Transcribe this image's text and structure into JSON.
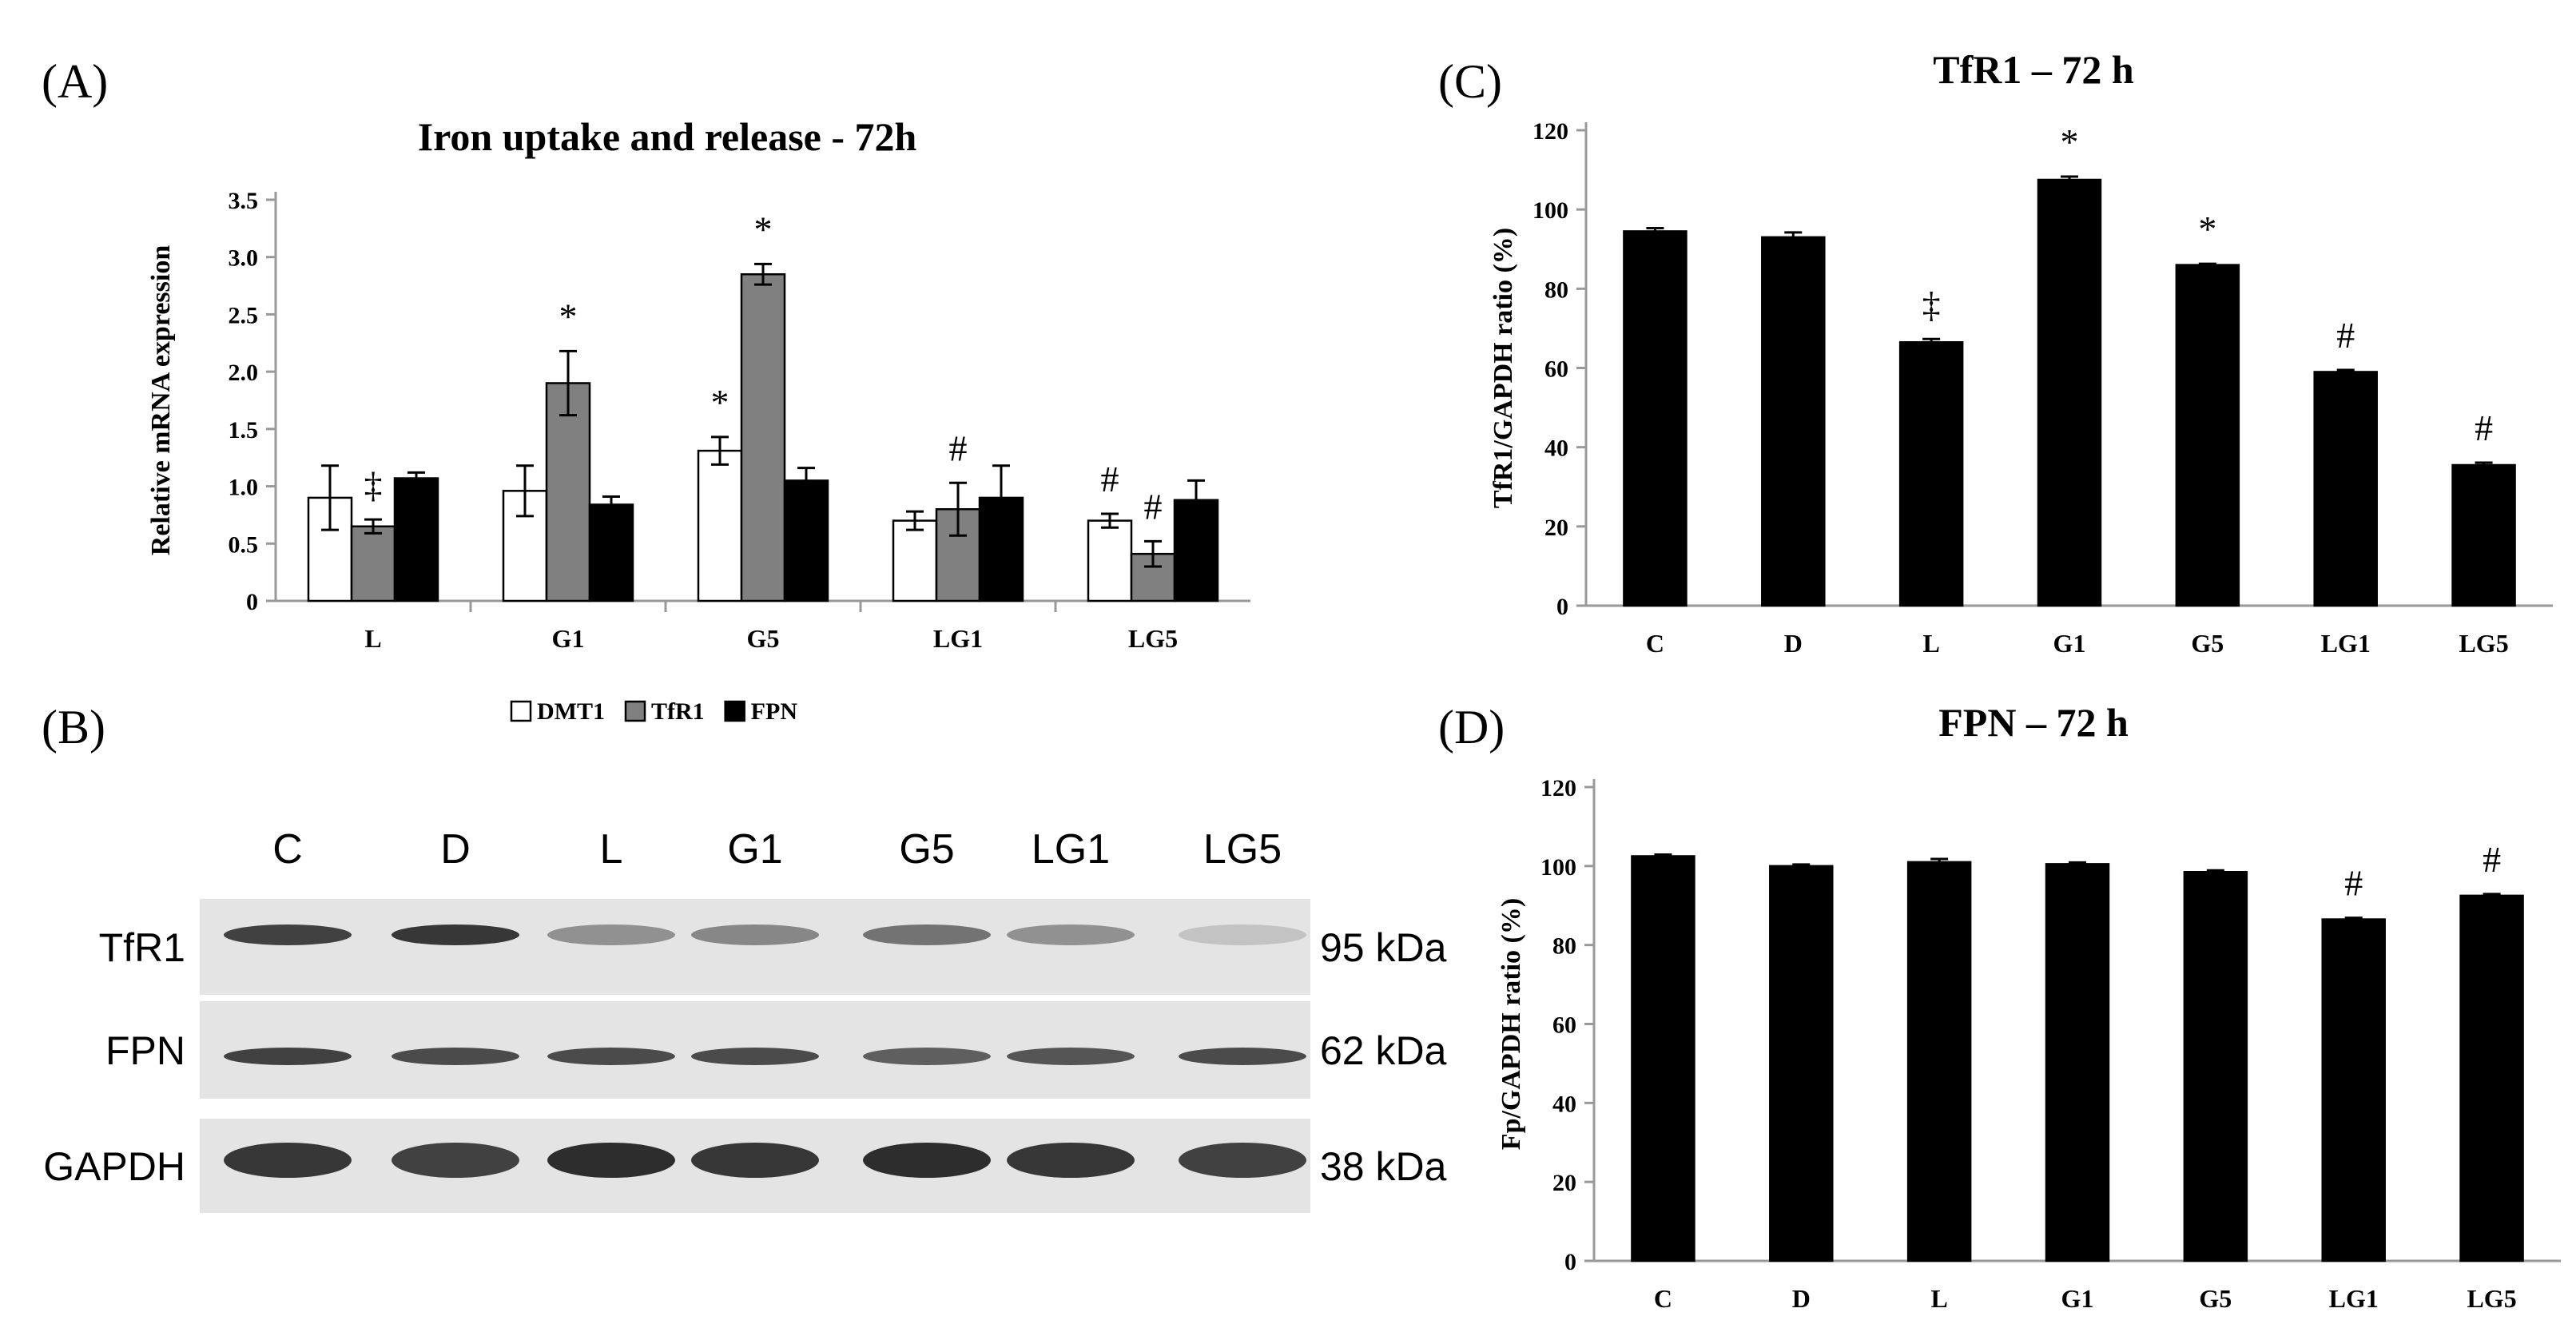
{
  "panels": {
    "A": "(A)",
    "B": "(B)",
    "C": "(C)",
    "D": "(D)"
  },
  "chart_data": [
    {
      "type": "bar",
      "title": "Iron uptake and release - 72h",
      "xlabel": "",
      "ylabel": "Relative mRNA expression",
      "ylim": [
        0,
        3.5
      ],
      "yticks": [
        "0",
        "0.5",
        "1.0",
        "1.5",
        "2.0",
        "2.5",
        "3.0",
        "3.5"
      ],
      "categories": [
        "L",
        "G1",
        "G5",
        "LG1",
        "LG5"
      ],
      "series": [
        {
          "name": "DMT1",
          "color": "#ffffff",
          "values": [
            0.9,
            0.96,
            1.31,
            0.7,
            0.7
          ],
          "errors": [
            0.28,
            0.22,
            0.12,
            0.08,
            0.06
          ],
          "marks": [
            "",
            "",
            "*",
            "",
            "#"
          ]
        },
        {
          "name": "TfR1",
          "color": "#808080",
          "values": [
            0.65,
            1.9,
            2.85,
            0.8,
            0.41
          ],
          "errors": [
            0.06,
            0.28,
            0.09,
            0.23,
            0.11
          ],
          "marks": [
            "‡",
            "*",
            "*",
            "#",
            "#"
          ]
        },
        {
          "name": "FPN",
          "color": "#000000",
          "values": [
            1.07,
            0.84,
            1.05,
            0.9,
            0.88
          ],
          "errors": [
            0.05,
            0.07,
            0.11,
            0.28,
            0.17
          ],
          "marks": [
            "",
            "",
            "",
            "",
            ""
          ]
        }
      ],
      "legend_position": "bottom"
    },
    {
      "type": "bar",
      "title": "TfR1 – 72 h",
      "xlabel": "",
      "ylabel": "TfR1/GAPDH ratio (%)",
      "ylim": [
        0,
        120
      ],
      "yticks": [
        "0",
        "20",
        "40",
        "60",
        "80",
        "100",
        "120"
      ],
      "categories": [
        "C",
        "D",
        "L",
        "G1",
        "G5",
        "LG1",
        "LG5"
      ],
      "values": [
        94.5,
        93.0,
        66.5,
        107.5,
        86.0,
        59.0,
        35.5
      ],
      "errors": [
        0.8,
        1.2,
        0.8,
        0.8,
        0.3,
        0.5,
        0.6
      ],
      "marks": [
        "",
        "",
        "‡",
        "*",
        "*",
        "#",
        "#"
      ]
    },
    {
      "type": "bar",
      "title": "FPN – 72 h",
      "xlabel": "",
      "ylabel": "Fp/GAPDH ratio (%)",
      "ylim": [
        0,
        120
      ],
      "yticks": [
        "0",
        "20",
        "40",
        "60",
        "80",
        "100",
        "120"
      ],
      "categories": [
        "C",
        "D",
        "L",
        "G1",
        "G5",
        "LG1",
        "LG5"
      ],
      "values": [
        102.5,
        100.0,
        101.0,
        100.5,
        98.5,
        86.5,
        92.5
      ],
      "errors": [
        0.4,
        0.4,
        0.8,
        0.4,
        0.4,
        0.4,
        0.4
      ],
      "marks": [
        "",
        "",
        "",
        "",
        "",
        "#",
        "#"
      ]
    }
  ],
  "blot": {
    "lanes": [
      "C",
      "D",
      "L",
      "G1",
      "G5",
      "LG1",
      "LG5"
    ],
    "rows": [
      {
        "name": "TfR1",
        "kda": "95 kDa"
      },
      {
        "name": "FPN",
        "kda": "62 kDa"
      },
      {
        "name": "GAPDH",
        "kda": "38 kDa"
      }
    ],
    "intensity": {
      "TfR1": [
        0.85,
        0.9,
        0.45,
        0.5,
        0.6,
        0.45,
        0.2
      ],
      "FPN": [
        0.85,
        0.8,
        0.8,
        0.8,
        0.7,
        0.75,
        0.8
      ],
      "GAPDH": [
        0.9,
        0.85,
        0.95,
        0.9,
        0.95,
        0.9,
        0.85
      ]
    }
  }
}
